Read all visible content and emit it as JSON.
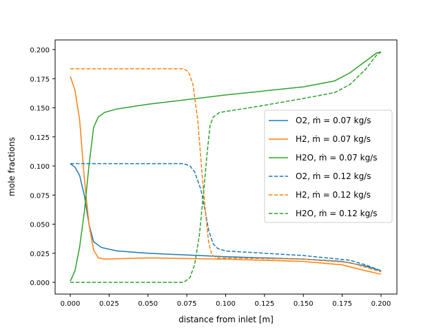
{
  "chart_data": {
    "type": "line",
    "xlabel": "distance from inlet [m]",
    "ylabel": "mole fractions",
    "xlim": [
      -0.01,
      0.21
    ],
    "ylim": [
      -0.01,
      0.21
    ],
    "xticks": [
      "0.000",
      "0.025",
      "0.050",
      "0.075",
      "0.100",
      "0.125",
      "0.150",
      "0.175",
      "0.200"
    ],
    "yticks": [
      "0.000",
      "0.025",
      "0.050",
      "0.075",
      "0.100",
      "0.125",
      "0.150",
      "0.175",
      "0.200"
    ],
    "grid": false,
    "legend_position": "center-right",
    "series": [
      {
        "name": "O2, ṁ = 0.07 kg/s",
        "color": "#1f77b4",
        "style": "solid",
        "x": [
          0,
          0.003,
          0.006,
          0.009,
          0.012,
          0.015,
          0.02,
          0.03,
          0.05,
          0.1,
          0.15,
          0.175,
          0.19,
          0.2
        ],
        "y": [
          0.102,
          0.099,
          0.092,
          0.075,
          0.05,
          0.035,
          0.03,
          0.027,
          0.025,
          0.022,
          0.02,
          0.018,
          0.014,
          0.01
        ]
      },
      {
        "name": "H2, ṁ = 0.07 kg/s",
        "color": "#ff7f0e",
        "style": "solid",
        "x": [
          0,
          0.003,
          0.006,
          0.009,
          0.012,
          0.015,
          0.018,
          0.022,
          0.05,
          0.1,
          0.15,
          0.175,
          0.19,
          0.2
        ],
        "y": [
          0.177,
          0.165,
          0.14,
          0.09,
          0.05,
          0.028,
          0.021,
          0.02,
          0.021,
          0.02,
          0.018,
          0.015,
          0.01,
          0.007
        ]
      },
      {
        "name": "H2O, ṁ = 0.07 kg/s",
        "color": "#2ca02c",
        "style": "solid",
        "x": [
          0,
          0.003,
          0.006,
          0.009,
          0.012,
          0.015,
          0.018,
          0.022,
          0.03,
          0.05,
          0.1,
          0.15,
          0.17,
          0.18,
          0.19,
          0.197,
          0.2
        ],
        "y": [
          0.001,
          0.01,
          0.03,
          0.06,
          0.1,
          0.133,
          0.142,
          0.146,
          0.149,
          0.153,
          0.161,
          0.168,
          0.173,
          0.18,
          0.19,
          0.197,
          0.198
        ]
      },
      {
        "name": "O2, ṁ = 0.12 kg/s",
        "color": "#1f77b4",
        "style": "dashed",
        "x": [
          0,
          0.073,
          0.077,
          0.08,
          0.084,
          0.087,
          0.089,
          0.092,
          0.095,
          0.1,
          0.15,
          0.18,
          0.19,
          0.2
        ],
        "y": [
          0.102,
          0.102,
          0.1,
          0.095,
          0.08,
          0.06,
          0.045,
          0.033,
          0.029,
          0.027,
          0.023,
          0.019,
          0.015,
          0.01
        ]
      },
      {
        "name": "H2, ṁ = 0.12 kg/s",
        "color": "#ff7f0e",
        "style": "dashed",
        "x": [
          0,
          0.073,
          0.076,
          0.079,
          0.082,
          0.085,
          0.087,
          0.089,
          0.091,
          0.094,
          0.15,
          0.18,
          0.19,
          0.2
        ],
        "y": [
          0.1835,
          0.1835,
          0.181,
          0.17,
          0.14,
          0.09,
          0.06,
          0.035,
          0.024,
          0.021,
          0.02,
          0.017,
          0.013,
          0.009
        ]
      },
      {
        "name": "H2O, ṁ = 0.12 kg/s",
        "color": "#2ca02c",
        "style": "dashed",
        "x": [
          0,
          0.073,
          0.077,
          0.08,
          0.083,
          0.086,
          0.088,
          0.09,
          0.092,
          0.096,
          0.12,
          0.15,
          0.17,
          0.18,
          0.19,
          0.197,
          0.2
        ],
        "y": [
          0,
          0,
          0.004,
          0.015,
          0.04,
          0.08,
          0.11,
          0.135,
          0.142,
          0.146,
          0.151,
          0.158,
          0.163,
          0.17,
          0.183,
          0.195,
          0.198
        ]
      }
    ]
  }
}
